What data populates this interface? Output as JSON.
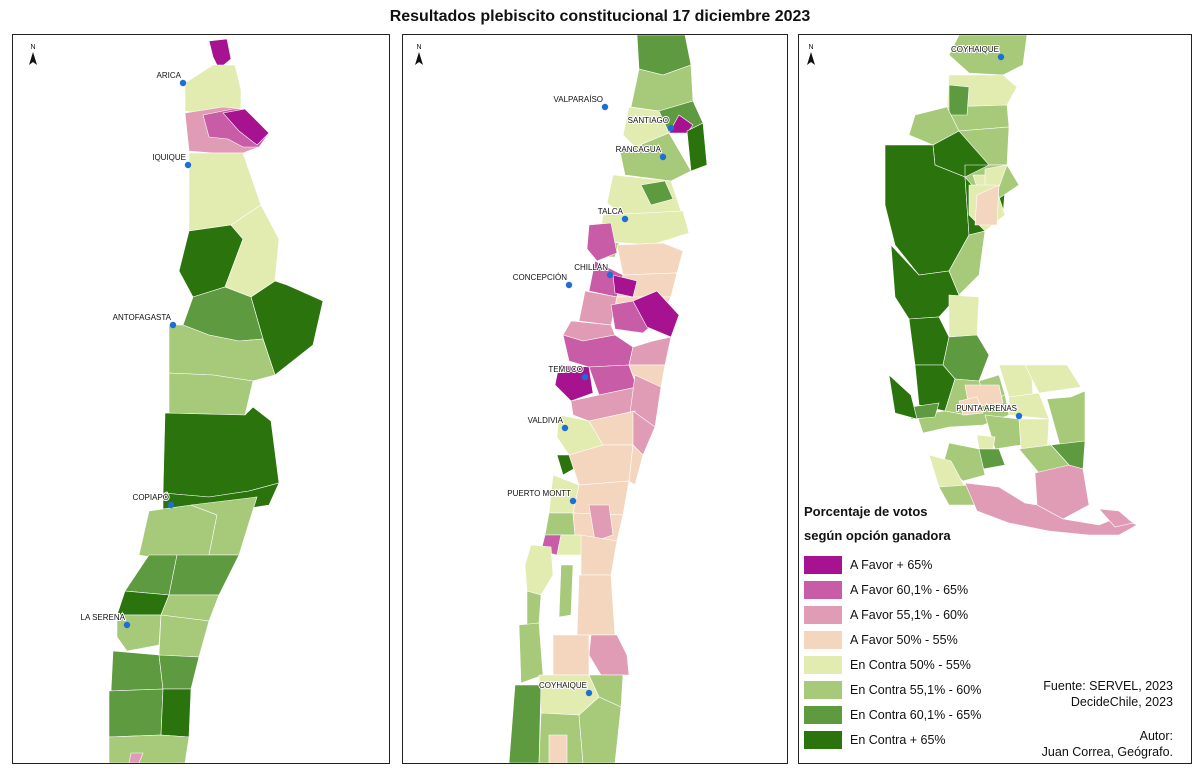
{
  "title": "Resultados plebiscito constitucional 17 diciembre 2023",
  "north_label": "N",
  "colors": {
    "a_favor_65": "#a6128f",
    "a_favor_60_65": "#c95ca6",
    "a_favor_55_60": "#e09cb4",
    "a_favor_50_55": "#f4d6bf",
    "en_contra_50_55": "#e2ebb0",
    "en_contra_55_60": "#a6c97a",
    "en_contra_60_65": "#5e9a3f",
    "en_contra_65": "#2a730d",
    "city_dot": "#1d6fd6",
    "sea": "#ffffff",
    "border": "#222222"
  },
  "panels": [
    {
      "id": "north",
      "cities": [
        "ARICA",
        "IQUIQUE",
        "ANTOFAGASTA",
        "COPIAPÓ",
        "LA SERENA"
      ]
    },
    {
      "id": "center",
      "cities": [
        "VALPARAÍSO",
        "SANTIAGO",
        "RANCAGUA",
        "TALCA",
        "CHILLÁN",
        "CONCEPCIÓN",
        "TEMUCO",
        "VALDIVIA",
        "PUERTO MONTT",
        "COYHAIQUE"
      ]
    },
    {
      "id": "south",
      "cities": [
        "COYHAIQUE",
        "PUNTA ARENAS"
      ]
    }
  ],
  "legend": {
    "title_line1": "Porcentaje de votos",
    "title_line2": "según opción ganadora",
    "items": [
      {
        "label": "A Favor + 65%",
        "color": "#a6128f"
      },
      {
        "label": "A Favor 60,1% - 65%",
        "color": "#c95ca6"
      },
      {
        "label": "A Favor 55,1% - 60%",
        "color": "#e09cb4"
      },
      {
        "label": "A Favor 50% - 55%",
        "color": "#f4d6bf"
      },
      {
        "label": "En Contra 50% - 55%",
        "color": "#e2ebb0"
      },
      {
        "label": "En Contra 55,1% - 60%",
        "color": "#a6c97a"
      },
      {
        "label": "En Contra 60,1% - 65%",
        "color": "#5e9a3f"
      },
      {
        "label": "En Contra + 65%",
        "color": "#2a730d"
      }
    ]
  },
  "credits": {
    "source_line1": "Fuente: SERVEL, 2023",
    "source_line2": "DecideChile, 2023",
    "author_line1": "Autor:",
    "author_line2": "Juan Correa, Geógrafo."
  }
}
